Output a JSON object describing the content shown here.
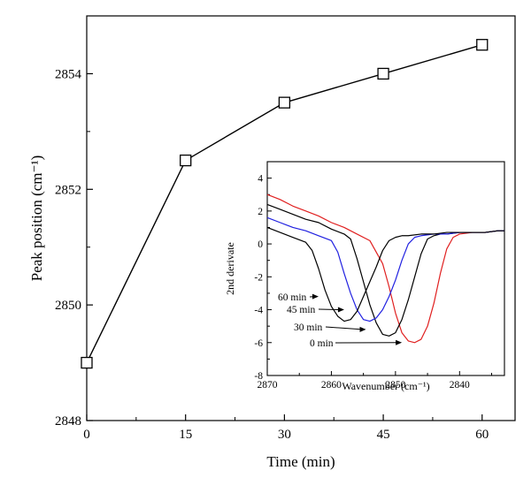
{
  "chart_data": [
    {
      "type": "line",
      "xlabel": "Time (min)",
      "ylabel": "Peak position (cm⁻¹)",
      "xlim": [
        0,
        65
      ],
      "ylim": [
        2848,
        2855
      ],
      "xticks": [
        0,
        15,
        30,
        45,
        60
      ],
      "yticks": [
        2848,
        2850,
        2852,
        2854
      ],
      "series": [
        {
          "x": [
            0,
            15,
            30,
            45,
            60
          ],
          "y": [
            2849.0,
            2852.5,
            2853.5,
            2854.0,
            2854.5
          ],
          "marker": "open-square",
          "color": "#000000"
        }
      ]
    },
    {
      "type": "line",
      "xlabel": "Wavenumber (cm⁻¹)",
      "ylabel": "2nd derivate",
      "xlim": [
        2870,
        2833
      ],
      "ylim": [
        -8,
        5
      ],
      "xticks": [
        2870,
        2860,
        2850,
        2840
      ],
      "yticks": [
        -8,
        -6,
        -4,
        -2,
        0,
        2,
        4
      ],
      "series": [
        {
          "name": "0 min",
          "color": "#e02020",
          "x": [
            2870,
            2868,
            2866,
            2864,
            2862,
            2860,
            2858,
            2856,
            2854,
            2852,
            2851,
            2850,
            2849,
            2848,
            2847,
            2846,
            2845,
            2844,
            2843,
            2842,
            2841,
            2840,
            2838,
            2836,
            2834,
            2833
          ],
          "y": [
            3.0,
            2.7,
            2.3,
            2.0,
            1.7,
            1.3,
            1.0,
            0.6,
            0.2,
            -1.2,
            -2.6,
            -4.2,
            -5.4,
            -5.9,
            -6.0,
            -5.8,
            -5.0,
            -3.6,
            -1.8,
            -0.3,
            0.4,
            0.6,
            0.7,
            0.7,
            0.8,
            0.8
          ]
        },
        {
          "name": "30 min",
          "color": "#000000",
          "x": [
            2870,
            2868,
            2866,
            2864,
            2862,
            2860,
            2858,
            2857,
            2856,
            2855,
            2854,
            2853,
            2852,
            2851,
            2850,
            2849,
            2848,
            2847,
            2846,
            2845,
            2844,
            2843,
            2842,
            2840,
            2838,
            2836,
            2834,
            2833
          ],
          "y": [
            2.4,
            2.1,
            1.8,
            1.5,
            1.3,
            0.9,
            0.6,
            0.3,
            -0.9,
            -2.3,
            -3.7,
            -4.8,
            -5.5,
            -5.6,
            -5.4,
            -4.6,
            -3.4,
            -2.0,
            -0.6,
            0.3,
            0.5,
            0.6,
            0.6,
            0.7,
            0.7,
            0.7,
            0.8,
            0.8
          ]
        },
        {
          "name": "45 min",
          "color": "#2020e0",
          "x": [
            2870,
            2868,
            2866,
            2864,
            2862,
            2860,
            2859,
            2858,
            2857,
            2856,
            2855,
            2854,
            2853,
            2852,
            2851,
            2850,
            2849,
            2848,
            2847,
            2846,
            2844,
            2842,
            2840,
            2838,
            2836,
            2834,
            2833
          ],
          "y": [
            1.6,
            1.3,
            1.0,
            0.8,
            0.5,
            0.2,
            -0.5,
            -1.8,
            -3.0,
            -4.0,
            -4.6,
            -4.7,
            -4.5,
            -4.0,
            -3.2,
            -2.2,
            -1.0,
            0.0,
            0.4,
            0.5,
            0.6,
            0.6,
            0.7,
            0.7,
            0.7,
            0.8,
            0.8
          ]
        },
        {
          "name": "60 min",
          "color": "#000000",
          "x": [
            2870,
            2868,
            2866,
            2864,
            2863,
            2862,
            2861,
            2860,
            2859,
            2858,
            2857,
            2856,
            2855,
            2854,
            2853,
            2852,
            2851,
            2850,
            2849,
            2848,
            2846,
            2844,
            2842,
            2840,
            2838,
            2836,
            2834,
            2833
          ],
          "y": [
            1.0,
            0.7,
            0.4,
            0.1,
            -0.4,
            -1.5,
            -2.8,
            -3.8,
            -4.4,
            -4.7,
            -4.6,
            -4.1,
            -3.2,
            -2.3,
            -1.4,
            -0.4,
            0.2,
            0.4,
            0.5,
            0.5,
            0.6,
            0.6,
            0.7,
            0.7,
            0.7,
            0.7,
            0.8,
            0.8
          ]
        }
      ],
      "annotations": [
        {
          "text": "60 min",
          "series": "60 min",
          "x": 2862.0,
          "y": -3.2
        },
        {
          "text": "45 min",
          "series": "45 min",
          "x": 2858.0,
          "y": -4.0
        },
        {
          "text": "30 min",
          "series": "30 min",
          "x": 2854.6,
          "y": -5.2
        },
        {
          "text": "0 min",
          "series": "0 min",
          "x": 2849.0,
          "y": -6.0
        }
      ]
    }
  ]
}
